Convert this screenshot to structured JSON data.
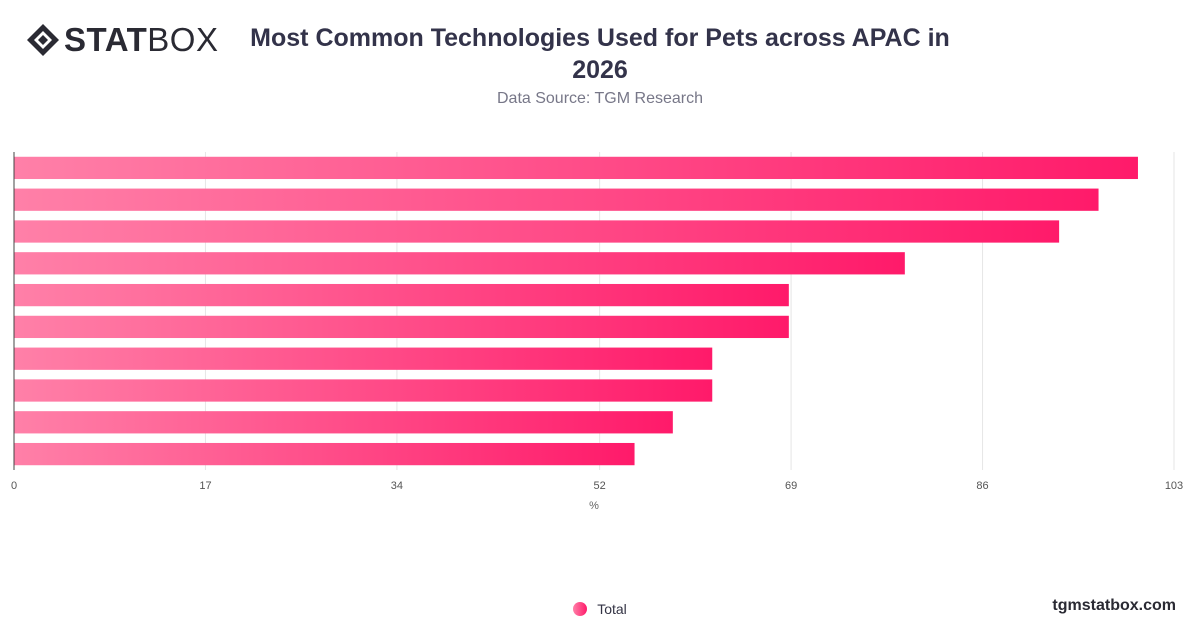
{
  "brand": {
    "strong": "STAT",
    "light": "BOX",
    "site": "tgmstatbox.com"
  },
  "icons": {
    "logo": "diamond-logo-icon",
    "legend": "circle-marker-icon"
  },
  "colors": {
    "bar_start": "#ff80a8",
    "bar_end": "#ff1a6a",
    "grid": "#e6e6e6",
    "axis": "#444444"
  },
  "chart_data": {
    "type": "bar",
    "orientation": "horizontal",
    "title": "Most Common Technologies Used for Pets across APAC in 2026",
    "subtitle": "Data Source: TGM Research",
    "xlabel": "%",
    "xlim": [
      0,
      103
    ],
    "xticks": [
      0,
      17,
      34,
      52,
      69,
      86,
      103
    ],
    "grid": true,
    "legend_position": "bottom-center",
    "series": [
      {
        "name": "Total",
        "values": [
          99.8,
          96.3,
          92.8,
          79.1,
          68.8,
          68.8,
          62.0,
          62.0,
          58.5,
          55.1
        ]
      }
    ]
  }
}
